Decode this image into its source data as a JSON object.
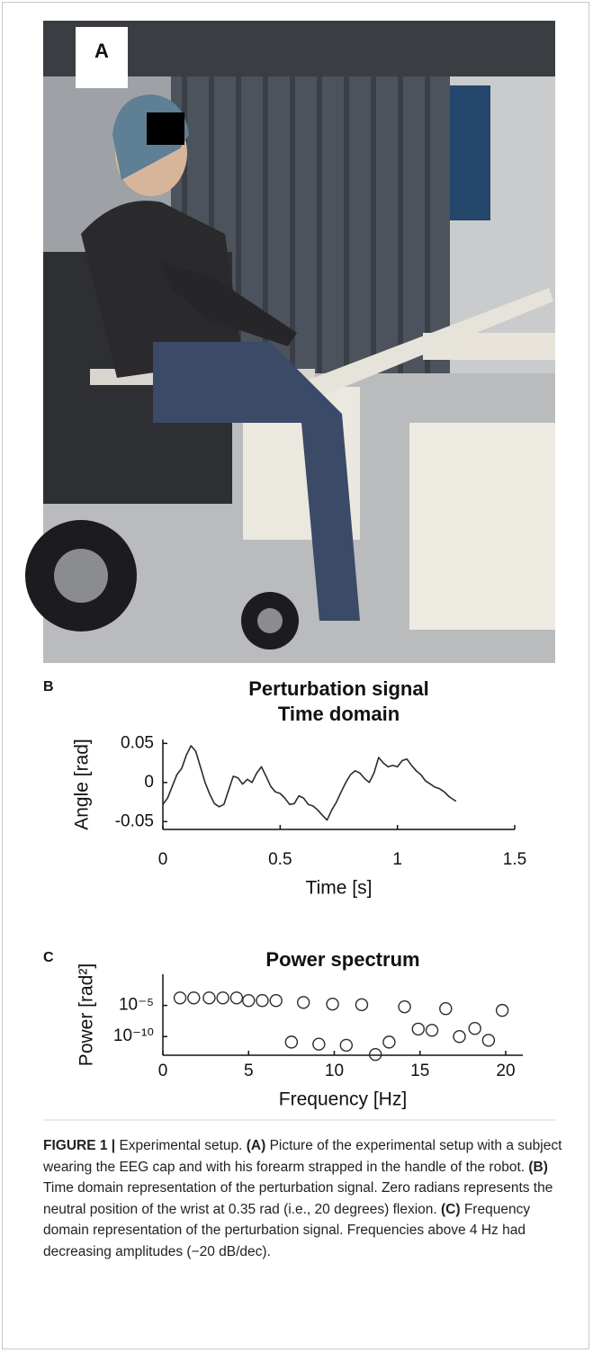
{
  "figure": {
    "panel_labels": [
      "A",
      "B",
      "C"
    ]
  },
  "chart_data": [
    {
      "type": "line",
      "title": "Perturbation signal",
      "subtitle": "Time domain",
      "x_label": "Time [s]",
      "y_label": "Angle [rad]",
      "color": "#2b2b2b",
      "x": [
        0.0,
        0.02,
        0.04,
        0.06,
        0.08,
        0.1,
        0.12,
        0.14,
        0.16,
        0.18,
        0.2,
        0.22,
        0.24,
        0.26,
        0.28,
        0.3,
        0.32,
        0.34,
        0.36,
        0.38,
        0.4,
        0.42,
        0.44,
        0.46,
        0.48,
        0.5,
        0.52,
        0.54,
        0.56,
        0.58,
        0.6,
        0.62,
        0.64,
        0.66,
        0.68,
        0.7,
        0.72,
        0.74,
        0.76,
        0.78,
        0.8,
        0.82,
        0.84,
        0.86,
        0.88,
        0.9,
        0.92,
        0.94,
        0.96,
        0.98,
        1.0,
        1.02,
        1.04,
        1.06,
        1.08,
        1.1,
        1.12,
        1.14,
        1.16,
        1.18,
        1.2,
        1.22,
        1.24,
        1.25
      ],
      "values": [
        -0.028,
        -0.02,
        -0.005,
        0.01,
        0.018,
        0.035,
        0.047,
        0.04,
        0.02,
        0.0,
        -0.015,
        -0.027,
        -0.031,
        -0.028,
        -0.01,
        0.008,
        0.006,
        -0.002,
        0.004,
        0.0,
        0.012,
        0.02,
        0.008,
        -0.005,
        -0.012,
        -0.014,
        -0.02,
        -0.028,
        -0.027,
        -0.017,
        -0.02,
        -0.028,
        -0.03,
        -0.035,
        -0.042,
        -0.048,
        -0.035,
        -0.025,
        -0.012,
        0.0,
        0.01,
        0.015,
        0.012,
        0.005,
        0.0,
        0.012,
        0.032,
        0.025,
        0.02,
        0.022,
        0.02,
        0.028,
        0.03,
        0.022,
        0.015,
        0.01,
        0.002,
        -0.002,
        -0.006,
        -0.008,
        -0.012,
        -0.018,
        -0.022,
        -0.024
      ],
      "xlim": [
        0,
        1.5
      ],
      "xticks": [
        0,
        0.5,
        1,
        1.5
      ],
      "ylim": [
        -0.06,
        0.055
      ],
      "yticks": [
        -0.05,
        0,
        0.05
      ]
    },
    {
      "type": "scatter",
      "title": "Power spectrum",
      "x_label": "Frequency [Hz]",
      "y_label": "Power [rad²]",
      "color": "#2b2b2b",
      "log_y": true,
      "x": [
        1.0,
        1.8,
        2.7,
        3.5,
        4.3,
        5.0,
        5.8,
        6.6,
        8.2,
        9.9,
        11.6,
        14.1,
        16.5,
        19.8,
        7.5,
        9.1,
        10.7,
        12.4,
        13.2,
        14.9,
        15.7,
        17.3,
        18.2,
        19.0
      ],
      "values": [
        0.00016,
        0.00016,
        0.00016,
        0.00016,
        0.00016,
        6e-05,
        6e-05,
        6e-05,
        3e-05,
        1.6e-05,
        1.3e-05,
        6e-06,
        3e-06,
        1.6e-06,
        1.3e-11,
        6e-12,
        4e-12,
        1.3e-13,
        1.3e-11,
        1.6e-09,
        1e-09,
        1e-10,
        2e-09,
        2.5e-11
      ],
      "xlim": [
        0,
        21
      ],
      "xticks": [
        0,
        5,
        10,
        15,
        20
      ],
      "ylim": [
        1e-13,
        1
      ],
      "yticks": [
        {
          "value": 1e-10,
          "label": "10⁻¹⁰"
        },
        {
          "value": 1e-05,
          "label": "10⁻⁵"
        }
      ]
    }
  ],
  "caption": [
    {
      "text": "FIGURE 1 |",
      "bold": true
    },
    {
      "text": " Experimental setup. ",
      "bold": false
    },
    {
      "text": "(A)",
      "bold": true
    },
    {
      "text": " Picture of the experimental setup with a subject wearing the EEG cap and with his forearm strapped in the handle of the robot. ",
      "bold": false
    },
    {
      "text": "(B)",
      "bold": true
    },
    {
      "text": " Time domain representation of the perturbation signal. Zero radians represents the neutral position of the wrist at 0.35 rad (i.e., 20 degrees) flexion. ",
      "bold": false
    },
    {
      "text": "(C)",
      "bold": true
    },
    {
      "text": " Frequency domain representation of the perturbation signal. Frequencies above 4 Hz had decreasing amplitudes (−20 dB/dec).",
      "bold": false
    }
  ]
}
